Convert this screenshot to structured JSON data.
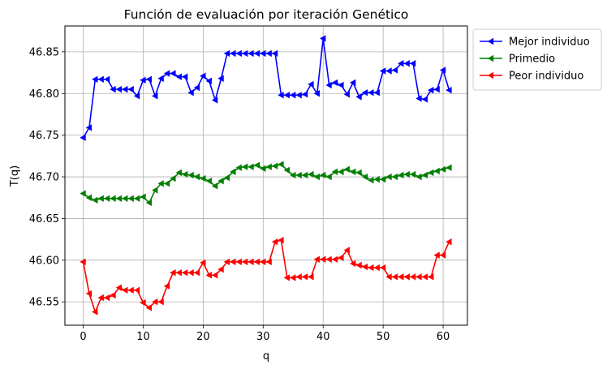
{
  "chart_data": {
    "type": "line",
    "title": "Función de evaluación por iteración Genético",
    "xlabel": "q",
    "ylabel": "T(q)",
    "xlim": [
      -3.05,
      64.05
    ],
    "ylim": [
      46.522,
      46.881
    ],
    "xticks": [
      0,
      10,
      20,
      30,
      40,
      50,
      60
    ],
    "xtick_labels": [
      "0",
      "10",
      "20",
      "30",
      "40",
      "50",
      "60"
    ],
    "yticks": [
      46.55,
      46.6,
      46.65,
      46.7,
      46.75,
      46.8,
      46.85
    ],
    "ytick_labels": [
      "46.55",
      "46.60",
      "46.65",
      "46.70",
      "46.75",
      "46.80",
      "46.85"
    ],
    "grid": true,
    "legend_position": "outside upper-right",
    "marker": "triangle-left",
    "x": [
      0,
      1,
      2,
      3,
      4,
      5,
      6,
      7,
      8,
      9,
      10,
      11,
      12,
      13,
      14,
      15,
      16,
      17,
      18,
      19,
      20,
      21,
      22,
      23,
      24,
      25,
      26,
      27,
      28,
      29,
      30,
      31,
      32,
      33,
      34,
      35,
      36,
      37,
      38,
      39,
      40,
      41,
      42,
      43,
      44,
      45,
      46,
      47,
      48,
      49,
      50,
      51,
      52,
      53,
      54,
      55,
      56,
      57,
      58,
      59,
      60,
      61
    ],
    "series": [
      {
        "name": "Mejor individuo",
        "color": "#0000ff",
        "values": [
          46.747,
          46.759,
          46.817,
          46.817,
          46.817,
          46.805,
          46.805,
          46.805,
          46.805,
          46.797,
          46.816,
          46.817,
          46.797,
          46.818,
          46.824,
          46.824,
          46.82,
          46.82,
          46.801,
          46.807,
          46.821,
          46.815,
          46.792,
          46.818,
          46.848,
          46.848,
          46.848,
          46.848,
          46.848,
          46.848,
          46.848,
          46.848,
          46.848,
          46.798,
          46.798,
          46.798,
          46.798,
          46.799,
          46.811,
          46.8,
          46.866,
          46.81,
          46.813,
          46.81,
          46.799,
          46.813,
          46.796,
          46.801,
          46.801,
          46.801,
          46.827,
          46.827,
          46.828,
          46.836,
          46.836,
          46.836,
          46.794,
          46.793,
          46.804,
          46.805,
          46.828,
          46.804
        ]
      },
      {
        "name": "Primedio",
        "color": "#008000",
        "values": [
          46.68,
          46.675,
          46.672,
          46.674,
          46.674,
          46.674,
          46.674,
          46.674,
          46.674,
          46.674,
          46.676,
          46.669,
          46.684,
          46.692,
          46.692,
          46.698,
          46.705,
          46.703,
          46.702,
          46.7,
          46.698,
          46.695,
          46.689,
          46.695,
          46.699,
          46.706,
          46.711,
          46.712,
          46.712,
          46.714,
          46.71,
          46.712,
          46.713,
          46.715,
          46.708,
          46.702,
          46.702,
          46.702,
          46.703,
          46.7,
          46.702,
          46.7,
          46.706,
          46.706,
          46.709,
          46.706,
          46.705,
          46.7,
          46.696,
          46.697,
          46.697,
          46.7,
          46.7,
          46.702,
          46.703,
          46.703,
          46.7,
          46.702,
          46.705,
          46.707,
          46.709,
          46.711
        ]
      },
      {
        "name": "Peor individuo",
        "color": "#ff0000",
        "values": [
          46.598,
          46.56,
          46.538,
          46.555,
          46.555,
          46.558,
          46.567,
          46.564,
          46.564,
          46.564,
          46.549,
          46.543,
          46.55,
          46.55,
          46.569,
          46.585,
          46.585,
          46.585,
          46.585,
          46.585,
          46.597,
          46.582,
          46.582,
          46.589,
          46.598,
          46.598,
          46.598,
          46.598,
          46.598,
          46.598,
          46.598,
          46.598,
          46.622,
          46.624,
          46.579,
          46.579,
          46.58,
          46.58,
          46.58,
          46.601,
          46.601,
          46.601,
          46.601,
          46.603,
          46.612,
          46.596,
          46.594,
          46.592,
          46.591,
          46.591,
          46.591,
          46.58,
          46.58,
          46.58,
          46.58,
          46.58,
          46.58,
          46.58,
          46.58,
          46.606,
          46.606,
          46.622
        ]
      }
    ]
  }
}
